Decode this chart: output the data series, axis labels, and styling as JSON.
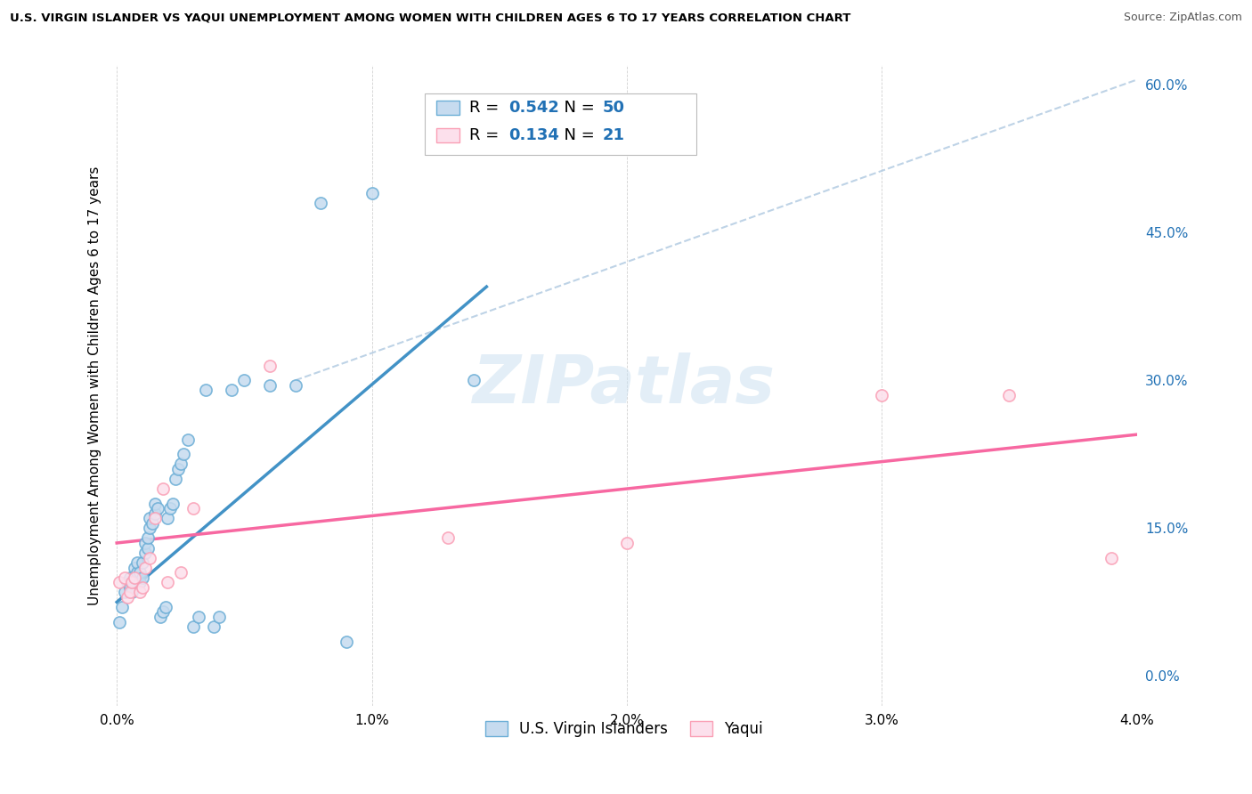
{
  "title": "U.S. VIRGIN ISLANDER VS YAQUI UNEMPLOYMENT AMONG WOMEN WITH CHILDREN AGES 6 TO 17 YEARS CORRELATION CHART",
  "source": "Source: ZipAtlas.com",
  "xlabel": "",
  "ylabel": "Unemployment Among Women with Children Ages 6 to 17 years",
  "legend_label_1": "U.S. Virgin Islanders",
  "legend_label_2": "Yaqui",
  "R1": 0.542,
  "N1": 50,
  "R2": 0.134,
  "N2": 21,
  "color_vi": "#6baed6",
  "color_yaqui": "#fa9fb5",
  "color_vi_fill": "#c6dbef",
  "color_yaqui_fill": "#fce0ec",
  "color_vi_line": "#4292c6",
  "color_yaqui_line": "#f768a1",
  "xlim": [
    -0.0002,
    0.04
  ],
  "ylim": [
    -0.03,
    0.62
  ],
  "xticks": [
    0.0,
    0.01,
    0.02,
    0.03,
    0.04
  ],
  "xtick_labels": [
    "0.0%",
    "1.0%",
    "2.0%",
    "3.0%",
    "4.0%"
  ],
  "yticks_right": [
    0.0,
    0.15,
    0.3,
    0.45,
    0.6
  ],
  "ytick_labels_right": [
    "0.0%",
    "15.0%",
    "30.0%",
    "45.0%",
    "60.0%"
  ],
  "watermark": "ZIPatlas",
  "vi_x": [
    0.0001,
    0.0002,
    0.0003,
    0.0004,
    0.0005,
    0.0005,
    0.0006,
    0.0006,
    0.0007,
    0.0007,
    0.0008,
    0.0008,
    0.0009,
    0.0009,
    0.001,
    0.001,
    0.0011,
    0.0011,
    0.0012,
    0.0012,
    0.0013,
    0.0013,
    0.0014,
    0.0015,
    0.0015,
    0.0016,
    0.0017,
    0.0018,
    0.0019,
    0.002,
    0.0021,
    0.0022,
    0.0023,
    0.0024,
    0.0025,
    0.0026,
    0.0028,
    0.003,
    0.0032,
    0.0035,
    0.0038,
    0.004,
    0.0045,
    0.005,
    0.006,
    0.007,
    0.008,
    0.009,
    0.01,
    0.014
  ],
  "vi_y": [
    0.055,
    0.07,
    0.085,
    0.095,
    0.09,
    0.1,
    0.085,
    0.095,
    0.1,
    0.11,
    0.105,
    0.115,
    0.095,
    0.105,
    0.1,
    0.115,
    0.125,
    0.135,
    0.13,
    0.14,
    0.15,
    0.16,
    0.155,
    0.165,
    0.175,
    0.17,
    0.06,
    0.065,
    0.07,
    0.16,
    0.17,
    0.175,
    0.2,
    0.21,
    0.215,
    0.225,
    0.24,
    0.05,
    0.06,
    0.29,
    0.05,
    0.06,
    0.29,
    0.3,
    0.295,
    0.295,
    0.48,
    0.035,
    0.49,
    0.3
  ],
  "yaqui_x": [
    0.0001,
    0.0003,
    0.0004,
    0.0005,
    0.0006,
    0.0007,
    0.0009,
    0.001,
    0.0011,
    0.0013,
    0.0015,
    0.0018,
    0.002,
    0.0025,
    0.003,
    0.006,
    0.013,
    0.02,
    0.03,
    0.035,
    0.039
  ],
  "yaqui_y": [
    0.095,
    0.1,
    0.08,
    0.085,
    0.095,
    0.1,
    0.085,
    0.09,
    0.11,
    0.12,
    0.16,
    0.19,
    0.095,
    0.105,
    0.17,
    0.315,
    0.14,
    0.135,
    0.285,
    0.285,
    0.12
  ]
}
